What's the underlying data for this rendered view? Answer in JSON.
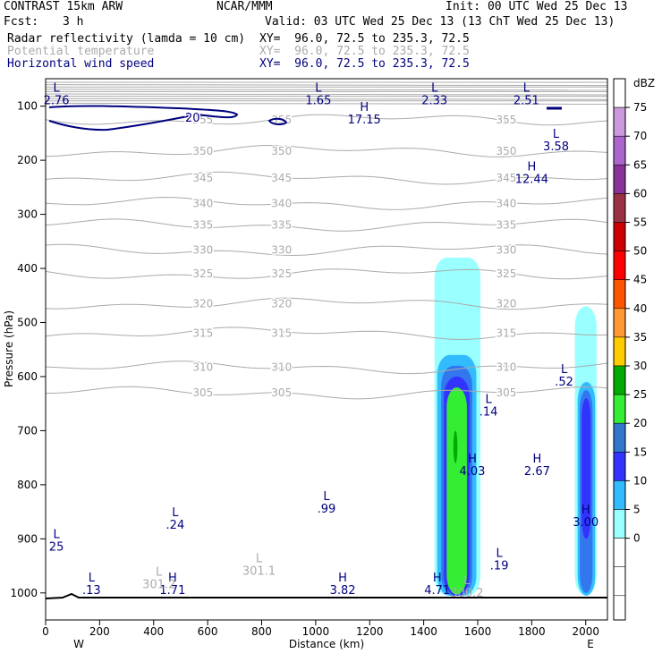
{
  "header": {
    "model": "CONTRAST 15km ARW",
    "center": "NCAR/MMM",
    "init": "Init: 00 UTC Wed 25 Dec 13",
    "fcst_label": "Fcst:",
    "fcst_value": "3 h",
    "valid": "Valid: 03 UTC Wed 25 Dec 13 (13 ChT Wed 25 Dec 13)"
  },
  "fields": [
    {
      "name": "Radar reflectivity (lamda = 10 cm)",
      "xy": "XY=  96.0, 72.5 to 235.3, 72.5",
      "color": "#000000"
    },
    {
      "name": "Potential temperature",
      "xy": "XY=  96.0, 72.5 to 235.3, 72.5",
      "color": "#aaaaaa"
    },
    {
      "name": "Horizontal wind speed",
      "xy": "XY=  96.0, 72.5 to 235.3, 72.5",
      "color": "#00007f"
    }
  ],
  "chart_data": {
    "type": "contour",
    "xlabel": "Distance (km)",
    "ylabel": "Pressure (hPa)",
    "xlim": [
      0,
      2090
    ],
    "ylim": [
      1010,
      65
    ],
    "x_ticks": [
      0,
      200,
      400,
      600,
      800,
      1000,
      1200,
      1400,
      1600,
      1800,
      2000
    ],
    "y_ticks": [
      100,
      200,
      300,
      400,
      500,
      600,
      700,
      800,
      900,
      1000
    ],
    "endpoint_labels": {
      "west": "W",
      "east": "E"
    },
    "potential_temperature_contours": [
      {
        "theta": 355,
        "label": "355",
        "pressure": 125
      },
      {
        "theta": 350,
        "label": "350",
        "pressure": 183
      },
      {
        "theta": 345,
        "label": "345",
        "pressure": 233
      },
      {
        "theta": 340,
        "label": "340",
        "pressure": 280
      },
      {
        "theta": 335,
        "label": "335",
        "pressure": 320
      },
      {
        "theta": 330,
        "label": "330",
        "pressure": 366
      },
      {
        "theta": 325,
        "label": "325",
        "pressure": 410
      },
      {
        "theta": 320,
        "label": "320",
        "pressure": 465
      },
      {
        "theta": 315,
        "label": "315",
        "pressure": 520
      },
      {
        "theta": 310,
        "label": "310",
        "pressure": 583
      },
      {
        "theta": 305,
        "label": "305",
        "pressure": 630
      }
    ],
    "wind_speed_contour": {
      "value": 20,
      "label": "20"
    },
    "extrema_labels": [
      {
        "type": "L",
        "value": "2.76",
        "x": 40,
        "p": 90,
        "field": "wind"
      },
      {
        "type": "L",
        "value": "1.65",
        "x": 1010,
        "p": 90,
        "field": "wind"
      },
      {
        "type": "L",
        "value": "2.33",
        "x": 1440,
        "p": 90,
        "field": "wind"
      },
      {
        "type": "L",
        "value": "2.51",
        "x": 1780,
        "p": 90,
        "field": "wind"
      },
      {
        "type": "H",
        "value": "17.15",
        "x": 1180,
        "p": 125,
        "field": "wind"
      },
      {
        "type": "L",
        "value": "3.58",
        "x": 1890,
        "p": 175,
        "field": "wind"
      },
      {
        "type": "H",
        "value": "12.44",
        "x": 1800,
        "p": 235,
        "field": "wind"
      },
      {
        "type": "L",
        "value": ".52",
        "x": 1920,
        "p": 610,
        "field": "wind"
      },
      {
        "type": "L",
        "value": ".14",
        "x": 1640,
        "p": 665,
        "field": "wind"
      },
      {
        "type": "H",
        "value": "4.03",
        "x": 1580,
        "p": 775,
        "field": "wind"
      },
      {
        "type": "H",
        "value": "2.67",
        "x": 1820,
        "p": 775,
        "field": "wind"
      },
      {
        "type": "L",
        "value": ".99",
        "x": 1040,
        "p": 845,
        "field": "wind"
      },
      {
        "type": "L",
        "value": ".24",
        "x": 480,
        "p": 875,
        "field": "wind"
      },
      {
        "type": "H",
        "value": "3.00",
        "x": 2000,
        "p": 870,
        "field": "wind"
      },
      {
        "type": "L",
        "value": "25",
        "x": 40,
        "p": 915,
        "field": "wind"
      },
      {
        "type": "L",
        "value": ".19",
        "x": 1680,
        "p": 950,
        "field": "wind"
      },
      {
        "type": "L",
        "value": ".13",
        "x": 170,
        "p": 995,
        "field": "wind"
      },
      {
        "type": "H",
        "value": "1.71",
        "x": 470,
        "p": 995,
        "field": "wind"
      },
      {
        "type": "H",
        "value": "3.82",
        "x": 1100,
        "p": 995,
        "field": "wind"
      },
      {
        "type": "H",
        "value": "4.71",
        "x": 1450,
        "p": 995,
        "field": "wind"
      },
      {
        "type": "L",
        "value": "301.1",
        "x": 790,
        "p": 960,
        "field": "theta"
      },
      {
        "type": "L",
        "value": "301.2",
        "x": 420,
        "p": 985,
        "field": "theta"
      },
      {
        "type": "L",
        "value": "300.2",
        "x": 1560,
        "p": 1000,
        "field": "theta"
      }
    ],
    "colorbar": {
      "title": "dBZ",
      "levels": [
        0,
        5,
        10,
        15,
        20,
        25,
        30,
        35,
        40,
        45,
        50,
        55,
        60,
        65,
        70,
        75
      ],
      "colors": [
        "#ffffff",
        "#ffffff",
        "#99ffff",
        "#33bbff",
        "#3333ff",
        "#3377cc",
        "#33ee33",
        "#00aa00",
        "#ffcc00",
        "#ffee44",
        "#ff9933",
        "#ff5500",
        "#ff0000",
        "#cc0000",
        "#993344",
        "#883399",
        "#aa66cc",
        "#cc99dd",
        "#ffffff"
      ]
    },
    "reflectivity_cells": [
      {
        "center_km": 1520,
        "bands": [
          {
            "dbz": 5,
            "x": [
              1440,
              1610
            ],
            "top_p": 380,
            "base_p": 1005
          },
          {
            "dbz": 10,
            "x": [
              1450,
              1595
            ],
            "top_p": 560,
            "base_p": 1005
          },
          {
            "dbz": 15,
            "x": [
              1465,
              1580
            ],
            "top_p": 580,
            "base_p": 1005
          },
          {
            "dbz": 20,
            "x": [
              1475,
              1570
            ],
            "top_p": 600,
            "base_p": 1005
          },
          {
            "dbz": 25,
            "x": [
              1485,
              1560
            ],
            "top_p": 620,
            "base_p": 1003
          },
          {
            "dbz": 30,
            "x": [
              1495,
              1545
            ],
            "top_p": 640,
            "base_p": 1000
          },
          {
            "dbz": 35,
            "x": [
              1510,
              1525
            ],
            "top_p": 700,
            "base_p": 760
          }
        ]
      },
      {
        "center_km": 2000,
        "bands": [
          {
            "dbz": 5,
            "x": [
              1960,
              2040
            ],
            "top_p": 470,
            "base_p": 1005
          },
          {
            "dbz": 10,
            "x": [
              1970,
              2035
            ],
            "top_p": 610,
            "base_p": 1005
          },
          {
            "dbz": 15,
            "x": [
              1978,
              2025
            ],
            "top_p": 625,
            "base_p": 1000
          },
          {
            "dbz": 20,
            "x": [
              1985,
              2018
            ],
            "top_p": 640,
            "base_p": 900
          }
        ]
      }
    ]
  }
}
